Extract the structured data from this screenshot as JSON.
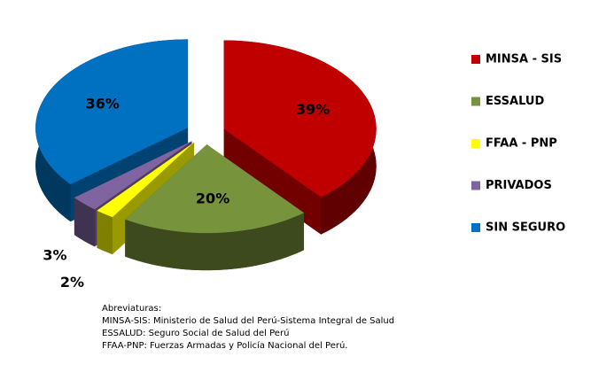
{
  "chart_data": {
    "type": "pie3d",
    "categories": [
      "MINSA - SIS",
      "ESSALUD",
      "FFAA - PNP",
      "PRIVADOS",
      "SIN SEGURO"
    ],
    "values": [
      39,
      20,
      2,
      3,
      36
    ],
    "value_labels": [
      "39%",
      "20%",
      "2%",
      "3%",
      "36%"
    ],
    "colors": [
      "#c00000",
      "#77933c",
      "#ffff00",
      "#8064a2",
      "#0070c0"
    ],
    "legend": "right"
  },
  "notes": {
    "title": "Abreviaturas:",
    "lines": [
      "MINSA-SIS: Ministerio de Salud del Perú-Sistema Integral de Salud",
      "ESSALUD: Seguro Social de Salud del Perú",
      "FFAA-PNP: Fuerzas Armadas y Policía Nacional del Perú."
    ]
  }
}
